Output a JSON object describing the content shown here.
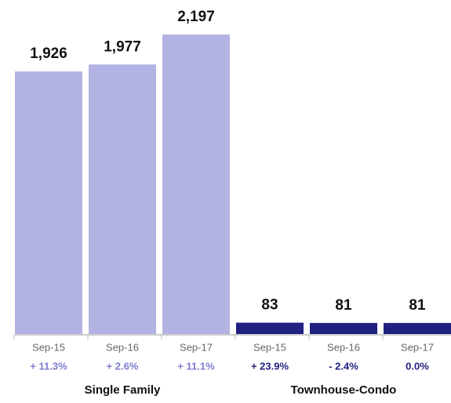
{
  "chart_data": {
    "type": "bar",
    "groups": [
      {
        "name": "Single Family",
        "color": "#b3b3e3",
        "change_color": "#7c7cd0",
        "categories": [
          "Sep-15",
          "Sep-16",
          "Sep-17"
        ],
        "values": [
          1926,
          1977,
          2197
        ],
        "value_labels": [
          "1,926",
          "1,977",
          "2,197"
        ],
        "change_labels": [
          "+ 11.3%",
          "+ 2.6%",
          "+ 11.1%"
        ]
      },
      {
        "name": "Townhouse-Condo",
        "color": "#1f2080",
        "change_color": "#1f2080",
        "categories": [
          "Sep-15",
          "Sep-16",
          "Sep-17"
        ],
        "values": [
          83,
          81,
          81
        ],
        "value_labels": [
          "83",
          "81",
          "81"
        ],
        "change_labels": [
          "+ 23.9%",
          "- 2.4%",
          "0.0%"
        ]
      }
    ]
  }
}
